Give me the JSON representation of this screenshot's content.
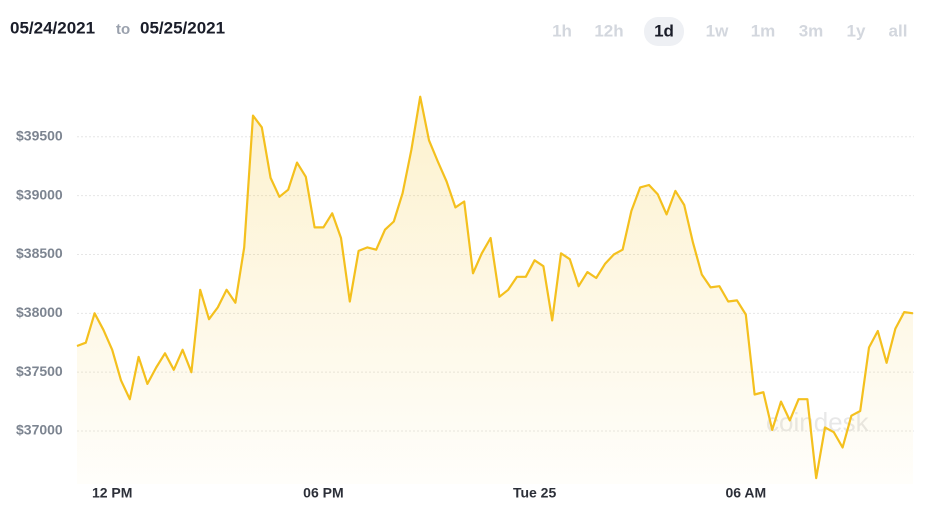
{
  "header": {
    "from": "05/24/2021",
    "to_word": "to",
    "to": "05/25/2021"
  },
  "ranges": [
    "1h",
    "12h",
    "1d",
    "1w",
    "1m",
    "3m",
    "1y",
    "all"
  ],
  "selected_range_index": 2,
  "chart_data": {
    "type": "line",
    "watermark": "coindesk",
    "color": "#f4c01e",
    "grid": true,
    "x": [
      11,
      11.25,
      11.5,
      11.75,
      12,
      12.25,
      12.5,
      12.75,
      13,
      13.25,
      13.5,
      13.75,
      14,
      14.25,
      14.5,
      14.75,
      15,
      15.25,
      15.5,
      15.75,
      16,
      16.25,
      16.5,
      16.75,
      17,
      17.25,
      17.5,
      17.75,
      18,
      18.25,
      18.5,
      18.75,
      19,
      19.25,
      19.5,
      19.75,
      20,
      20.25,
      20.5,
      20.75,
      21,
      21.25,
      21.5,
      21.75,
      22,
      22.25,
      22.5,
      22.75,
      23,
      23.25,
      23.5,
      23.75,
      24,
      24.25,
      24.5,
      24.75,
      25,
      25.25,
      25.5,
      25.75,
      26,
      26.25,
      26.5,
      26.75,
      27,
      27.25,
      27.5,
      27.75,
      28,
      28.25,
      28.5,
      28.75,
      29,
      29.25,
      29.5,
      29.75,
      30,
      30.25,
      30.5,
      30.75,
      31,
      31.25,
      31.5,
      31.75,
      32,
      32.25,
      32.5,
      32.75,
      33,
      33.25,
      33.5,
      33.75,
      34,
      34.25,
      34.5,
      34.75
    ],
    "values": [
      37722,
      37750,
      38000,
      37860,
      37690,
      37430,
      37270,
      37630,
      37400,
      37540,
      37660,
      37520,
      37690,
      37500,
      38200,
      37950,
      38050,
      38200,
      38090,
      38560,
      39680,
      39580,
      39150,
      38990,
      39050,
      39280,
      39160,
      38730,
      38730,
      38850,
      38640,
      38100,
      38530,
      38560,
      38540,
      38710,
      38780,
      39020,
      39390,
      39840,
      39470,
      39290,
      39120,
      38900,
      38950,
      38340,
      38510,
      38640,
      38140,
      38200,
      38310,
      38310,
      38450,
      38400,
      37940,
      38510,
      38460,
      38230,
      38350,
      38300,
      38420,
      38500,
      38540,
      38870,
      39070,
      39090,
      39010,
      38840,
      39040,
      38920,
      38600,
      38330,
      38220,
      38230,
      38100,
      38110,
      37990,
      37310,
      37330,
      37010,
      37250,
      37090,
      37270,
      37270,
      36600,
      37030,
      36990,
      36860,
      37130,
      37170,
      37710,
      37850,
      37580,
      37870,
      38010,
      38000
    ],
    "xlim": [
      11,
      34.75
    ],
    "xticks": [
      {
        "value": 12,
        "label": "12 PM"
      },
      {
        "value": 18,
        "label": "06 PM"
      },
      {
        "value": 24,
        "label": "Tue 25"
      },
      {
        "value": 30,
        "label": "06 AM"
      }
    ],
    "ylim": [
      36550,
      40050
    ],
    "yticks": [
      {
        "value": 37000,
        "label": "$37000"
      },
      {
        "value": 37500,
        "label": "$37500"
      },
      {
        "value": 38000,
        "label": "$38000"
      },
      {
        "value": 38500,
        "label": "$38500"
      },
      {
        "value": 39000,
        "label": "$39000"
      },
      {
        "value": 39500,
        "label": "$39500"
      }
    ]
  }
}
